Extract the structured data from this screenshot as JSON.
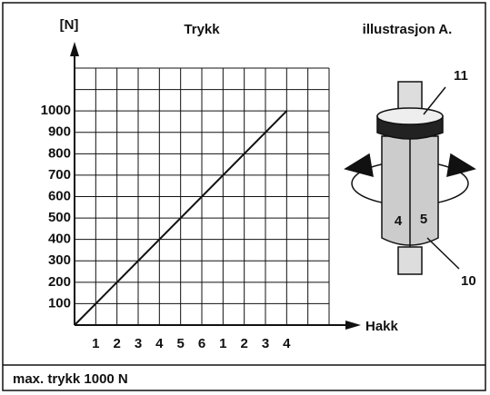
{
  "chart_data": {
    "type": "line",
    "title": "Trykk",
    "y_label": "[N]",
    "x_label": "Hakk",
    "x": [
      0,
      10
    ],
    "values": [
      0,
      1000
    ],
    "color": "#111111",
    "xlim": [
      0,
      12
    ],
    "ylim": [
      0,
      1200
    ],
    "xticks": [
      1,
      2,
      3,
      4,
      5,
      6,
      {
        "value": 7,
        "label": "1"
      },
      {
        "value": 8,
        "label": "2"
      },
      {
        "value": 9,
        "label": "3"
      },
      {
        "value": 10,
        "label": "4"
      }
    ],
    "yticks": [
      100,
      200,
      300,
      400,
      500,
      600,
      700,
      800,
      900,
      1000
    ],
    "grid": true
  },
  "illustration": {
    "title": "illustrasjon  A.",
    "callouts": [
      "11",
      "10"
    ],
    "faces": [
      "4",
      "5"
    ]
  },
  "footer": "max. trykk 1000 N"
}
